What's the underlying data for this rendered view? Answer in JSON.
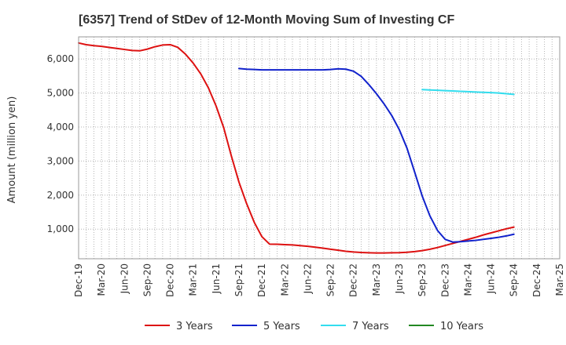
{
  "chart_data": {
    "type": "line",
    "title": "[6357]  Trend of StDev of 12-Month Moving Sum of Investing CF",
    "xlabel": "",
    "ylabel": "Amount (million yen)",
    "x_ticks": [
      "Dec-19",
      "Mar-20",
      "Jun-20",
      "Sep-20",
      "Dec-20",
      "Mar-21",
      "Jun-21",
      "Sep-21",
      "Dec-21",
      "Mar-22",
      "Jun-22",
      "Sep-22",
      "Dec-22",
      "Mar-23",
      "Jun-23",
      "Sep-23",
      "Dec-23",
      "Mar-24",
      "Jun-24",
      "Sep-24",
      "Dec-24",
      "Mar-25"
    ],
    "y_ticks": [
      1000,
      2000,
      3000,
      4000,
      5000,
      6000
    ],
    "y_tick_labels": [
      "1,000",
      "2,000",
      "3,000",
      "4,000",
      "5,000",
      "6,000"
    ],
    "ylim": [
      130,
      6650
    ],
    "grid": true,
    "legend_position": "bottom",
    "series": [
      {
        "name": "3 Years",
        "color": "#dd1111",
        "values": [
          [
            0,
            6470
          ],
          [
            1,
            6420
          ],
          [
            2,
            6390
          ],
          [
            3,
            6370
          ],
          [
            4,
            6340
          ],
          [
            5,
            6310
          ],
          [
            6,
            6280
          ],
          [
            7,
            6250
          ],
          [
            8,
            6240
          ],
          [
            9,
            6290
          ],
          [
            10,
            6360
          ],
          [
            11,
            6410
          ],
          [
            12,
            6420
          ],
          [
            13,
            6340
          ],
          [
            14,
            6140
          ],
          [
            15,
            5880
          ],
          [
            16,
            5560
          ],
          [
            17,
            5150
          ],
          [
            18,
            4620
          ],
          [
            19,
            3980
          ],
          [
            20,
            3150
          ],
          [
            21,
            2380
          ],
          [
            22,
            1750
          ],
          [
            23,
            1200
          ],
          [
            24,
            780
          ],
          [
            25,
            560
          ],
          [
            26,
            555
          ],
          [
            27,
            545
          ],
          [
            28,
            535
          ],
          [
            29,
            515
          ],
          [
            30,
            495
          ],
          [
            31,
            470
          ],
          [
            32,
            440
          ],
          [
            33,
            410
          ],
          [
            34,
            380
          ],
          [
            35,
            350
          ],
          [
            36,
            330
          ],
          [
            37,
            315
          ],
          [
            38,
            305
          ],
          [
            39,
            300
          ],
          [
            40,
            300
          ],
          [
            41,
            305
          ],
          [
            42,
            310
          ],
          [
            43,
            320
          ],
          [
            44,
            340
          ],
          [
            45,
            370
          ],
          [
            46,
            410
          ],
          [
            47,
            460
          ],
          [
            48,
            520
          ],
          [
            49,
            580
          ],
          [
            50,
            640
          ],
          [
            51,
            700
          ],
          [
            52,
            760
          ],
          [
            53,
            830
          ],
          [
            54,
            890
          ],
          [
            55,
            950
          ],
          [
            56,
            1010
          ],
          [
            57,
            1060
          ]
        ]
      },
      {
        "name": "5 Years",
        "color": "#1122cc",
        "values": [
          [
            21,
            5720
          ],
          [
            22,
            5700
          ],
          [
            23,
            5690
          ],
          [
            24,
            5680
          ],
          [
            25,
            5680
          ],
          [
            26,
            5680
          ],
          [
            27,
            5680
          ],
          [
            28,
            5680
          ],
          [
            29,
            5680
          ],
          [
            30,
            5680
          ],
          [
            31,
            5680
          ],
          [
            32,
            5680
          ],
          [
            33,
            5690
          ],
          [
            34,
            5710
          ],
          [
            35,
            5700
          ],
          [
            36,
            5640
          ],
          [
            37,
            5490
          ],
          [
            38,
            5250
          ],
          [
            39,
            4980
          ],
          [
            40,
            4680
          ],
          [
            41,
            4340
          ],
          [
            42,
            3920
          ],
          [
            43,
            3380
          ],
          [
            44,
            2680
          ],
          [
            45,
            1970
          ],
          [
            46,
            1390
          ],
          [
            47,
            960
          ],
          [
            48,
            700
          ],
          [
            49,
            620
          ],
          [
            50,
            630
          ],
          [
            51,
            650
          ],
          [
            52,
            670
          ],
          [
            53,
            700
          ],
          [
            54,
            730
          ],
          [
            55,
            760
          ],
          [
            56,
            800
          ],
          [
            57,
            850
          ]
        ]
      },
      {
        "name": "7 Years",
        "color": "#33ddee",
        "values": [
          [
            45,
            5100
          ],
          [
            46,
            5090
          ],
          [
            47,
            5080
          ],
          [
            48,
            5070
          ],
          [
            49,
            5060
          ],
          [
            50,
            5050
          ],
          [
            51,
            5040
          ],
          [
            52,
            5030
          ],
          [
            53,
            5020
          ],
          [
            54,
            5010
          ],
          [
            55,
            5000
          ],
          [
            56,
            4980
          ],
          [
            57,
            4960
          ]
        ]
      },
      {
        "name": "10 Years",
        "color": "#228822",
        "values": []
      }
    ]
  }
}
